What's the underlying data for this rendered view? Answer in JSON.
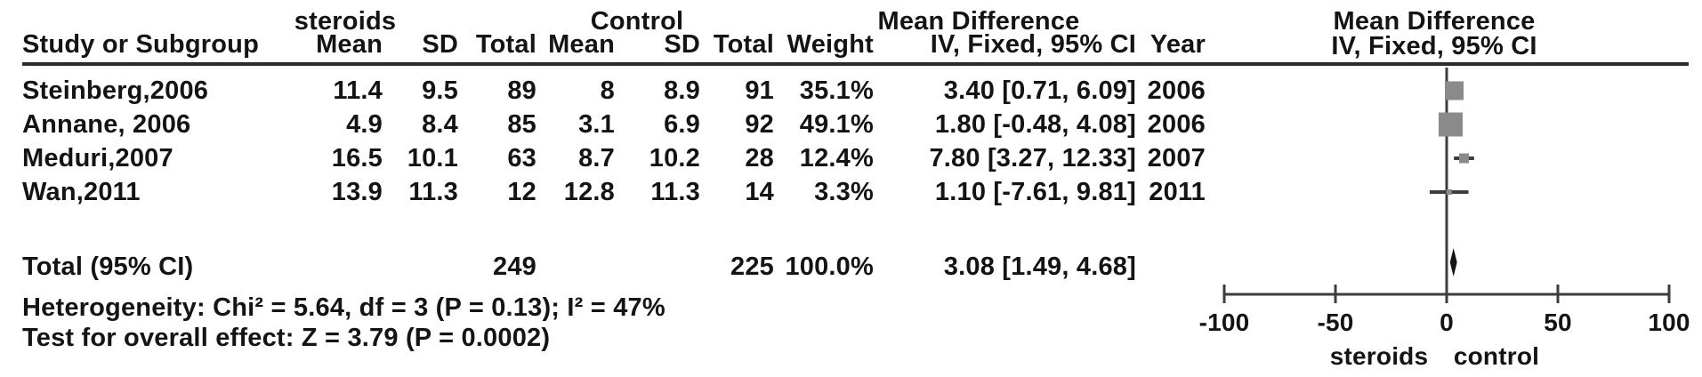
{
  "table": {
    "group_headers": {
      "steroids": "steroids",
      "control": "Control",
      "md_left": "Mean Difference",
      "md_right": "Mean Difference"
    },
    "col_headers": {
      "study": "Study or Subgroup",
      "s_mean": "Mean",
      "s_sd": "SD",
      "s_total": "Total",
      "c_mean": "Mean",
      "c_sd": "SD",
      "c_total": "Total",
      "weight": "Weight",
      "ci": "IV, Fixed, 95% CI",
      "year": "Year",
      "ci_right": "IV, Fixed, 95% CI"
    },
    "rows": [
      {
        "study": "Steinberg,2006",
        "s_mean": "11.4",
        "s_sd": "9.5",
        "s_total": "89",
        "c_mean": "8",
        "c_sd": "8.9",
        "c_total": "91",
        "weight": "35.1%",
        "ci": "3.40 [0.71, 6.09]",
        "year": "2006"
      },
      {
        "study": "Annane, 2006",
        "s_mean": "4.9",
        "s_sd": "8.4",
        "s_total": "85",
        "c_mean": "3.1",
        "c_sd": "6.9",
        "c_total": "92",
        "weight": "49.1%",
        "ci": "1.80 [-0.48, 4.08]",
        "year": "2006"
      },
      {
        "study": "Meduri,2007",
        "s_mean": "16.5",
        "s_sd": "10.1",
        "s_total": "63",
        "c_mean": "8.7",
        "c_sd": "10.2",
        "c_total": "28",
        "weight": "12.4%",
        "ci": "7.80 [3.27, 12.33]",
        "year": "2007"
      },
      {
        "study": "Wan,2011",
        "s_mean": "13.9",
        "s_sd": "11.3",
        "s_total": "12",
        "c_mean": "12.8",
        "c_sd": "11.3",
        "c_total": "14",
        "weight": "3.3%",
        "ci": "1.10 [-7.61, 9.81]",
        "year": "2011"
      }
    ],
    "total_row": {
      "label": "Total (95% CI)",
      "s_total": "249",
      "c_total": "225",
      "weight": "100.0%",
      "ci": "3.08 [1.49, 4.68]"
    },
    "footnotes": [
      "Heterogeneity: Chi² = 5.64, df = 3 (P = 0.13); I² = 47%",
      "Test for overall effect: Z = 3.79 (P = 0.0002)"
    ]
  },
  "chart_data": {
    "type": "forest",
    "title": "Mean Difference",
    "effect_model": "IV, Fixed, 95% CI",
    "x_axis": {
      "ticks": [
        -100,
        -50,
        0,
        50,
        100
      ],
      "range": [
        -100,
        100
      ],
      "favours_left": "steroids",
      "favours_right": "control"
    },
    "studies": [
      {
        "name": "Steinberg,2006",
        "md": 3.4,
        "ci_low": 0.71,
        "ci_high": 6.09,
        "weight_pct": 35.1,
        "year": 2006
      },
      {
        "name": "Annane, 2006",
        "md": 1.8,
        "ci_low": -0.48,
        "ci_high": 4.08,
        "weight_pct": 49.1,
        "year": 2006
      },
      {
        "name": "Meduri,2007",
        "md": 7.8,
        "ci_low": 3.27,
        "ci_high": 12.33,
        "weight_pct": 12.4,
        "year": 2007
      },
      {
        "name": "Wan,2011",
        "md": 1.1,
        "ci_low": -7.61,
        "ci_high": 9.81,
        "weight_pct": 3.3,
        "year": 2011
      }
    ],
    "total": {
      "label": "Total (95% CI)",
      "md": 3.08,
      "ci_low": 1.49,
      "ci_high": 4.68,
      "weight_pct": 100.0
    },
    "marker_color": "#8a8a8a",
    "line_color": "#3d3d3d",
    "diamond_color": "#141414"
  }
}
